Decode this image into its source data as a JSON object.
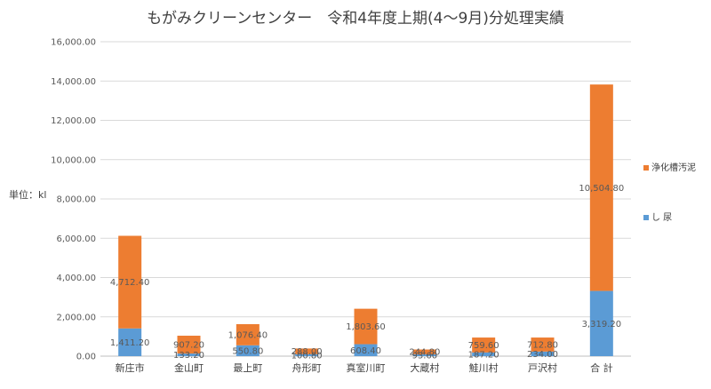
{
  "chart_data": {
    "type": "bar",
    "stacked": true,
    "title": "もがみクリーンセンター　令和4年度上期(4～9月)分処理実績",
    "ylabel": "単位：kl",
    "xlabel": "",
    "ylim": [
      0,
      16000
    ],
    "yticks": [
      "0.00",
      "2,000.00",
      "4,000.00",
      "6,000.00",
      "8,000.00",
      "10,000.00",
      "12,000.00",
      "14,000.00",
      "16,000.00"
    ],
    "categories": [
      "新庄市",
      "金山町",
      "最上町",
      "舟形町",
      "真室川町",
      "大蔵村",
      "鮭川村",
      "戸沢村",
      "合 計"
    ],
    "series": [
      {
        "name": "し 尿",
        "color": "#5B9BD5",
        "values": [
          1411.2,
          133.2,
          550.8,
          100.8,
          608.4,
          93.6,
          187.2,
          234.0,
          3319.2
        ],
        "labels": [
          "1,411.20",
          "133.20",
          "550.80",
          "100.80",
          "608.40",
          "93.60",
          "187.20",
          "234.00",
          "3,319.20"
        ]
      },
      {
        "name": "浄化槽汚泥",
        "color": "#ED7D31",
        "values": [
          4712.4,
          907.2,
          1076.4,
          288.0,
          1803.6,
          244.8,
          759.6,
          712.8,
          10504.8
        ],
        "labels": [
          "4,712.40",
          "907.20",
          "1,076.40",
          "288.00",
          "1,803.60",
          "244.80",
          "759.60",
          "712.80",
          "10,504.80"
        ]
      }
    ],
    "legend": {
      "position": "right",
      "order": [
        "浄化槽汚泥",
        "し 尿"
      ]
    },
    "grid": true
  }
}
